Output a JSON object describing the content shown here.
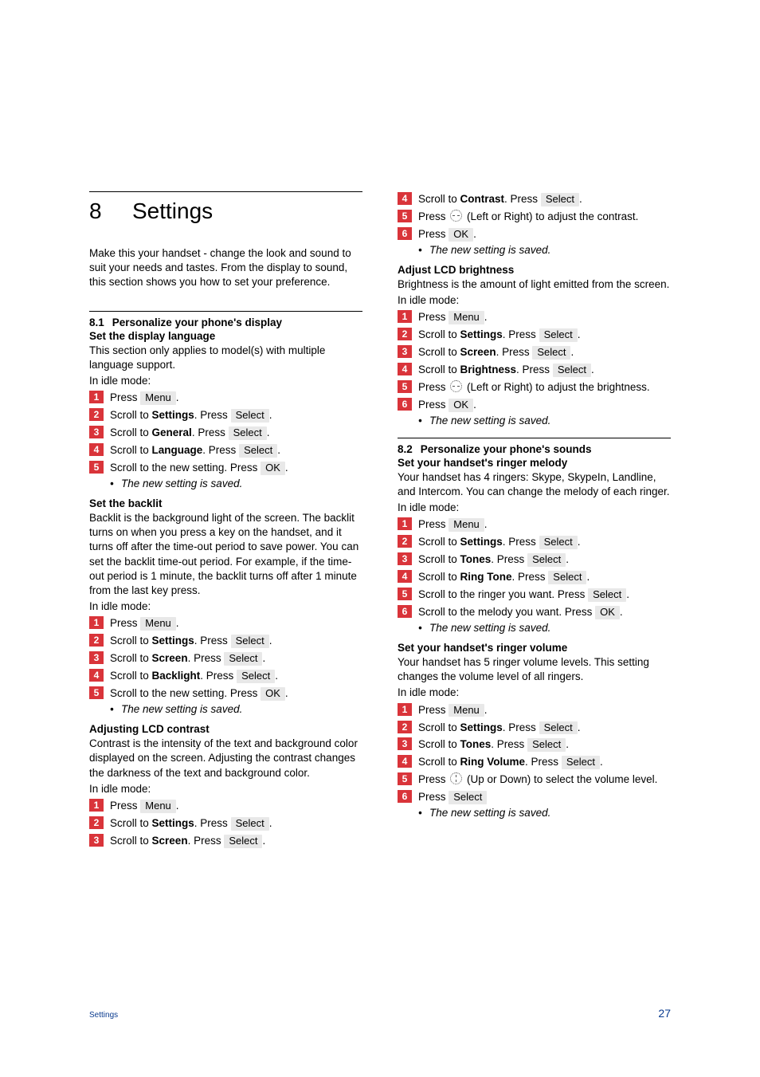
{
  "chapter": {
    "number": "8",
    "title": "Settings"
  },
  "intro": "Make this your handset - change the look and sound to suit your needs and tastes. From the display to sound, this section shows you how to set your preference.",
  "keys": {
    "menu": "Menu",
    "select": "Select",
    "ok": "OK"
  },
  "result_saved": "The new setting is saved.",
  "idle": "In idle mode:",
  "s81": {
    "num": "8.1",
    "title": "Personalize your phone's display",
    "lang": {
      "heading": "Set the display language",
      "desc": "This section only applies to model(s) with multiple language support.",
      "s2a": "Scroll to ",
      "s2b": "Settings",
      "s2c": ". Press ",
      "s3a": "Scroll to ",
      "s3b": "General",
      "s3c": ". Press ",
      "s4a": "Scroll to ",
      "s4b": "Language",
      "s4c": ". Press ",
      "s5a": "Scroll to the new setting. Press "
    },
    "backlit": {
      "heading": "Set the backlit",
      "desc": "Backlit is the background light of the screen. The backlit turns on when you press a key on the handset, and it turns off after the time-out period to save power. You can set the backlit time-out period. For example, if the time-out period is 1 minute, the backlit turns off after 1 minute from the last key press.",
      "s2a": "Scroll to ",
      "s2b": "Settings",
      "s2c": ". Press ",
      "s3a": "Scroll to ",
      "s3b": "Screen",
      "s3c": ". Press ",
      "s4a": "Scroll to ",
      "s4b": "Backlight",
      "s4c": ". Press ",
      "s5a": "Scroll to the new setting. Press "
    },
    "contrast": {
      "heading": "Adjusting LCD contrast",
      "desc": "Contrast is the intensity of the text and background color displayed on the screen. Adjusting the contrast changes the darkness of the text and background color.",
      "s2a": "Scroll to ",
      "s2b": "Settings",
      "s2c": ". Press ",
      "s3a": "Scroll to ",
      "s3b": "Screen",
      "s3c": ". Press ",
      "s4a": "Scroll to ",
      "s4b": "Contrast",
      "s4c": ". Press ",
      "s5a": "Press ",
      "s5b": " (Left or Right) to adjust the contrast.",
      "s6a": "Press "
    },
    "brightness": {
      "heading": "Adjust LCD brightness",
      "desc": "Brightness is the amount of light emitted from the screen.",
      "s2a": "Scroll to ",
      "s2b": "Settings",
      "s2c": ". Press ",
      "s3a": "Scroll to ",
      "s3b": "Screen",
      "s3c": ". Press ",
      "s4a": "Scroll to ",
      "s4b": "Brightness",
      "s4c": ". Press ",
      "s5a": "Press ",
      "s5b": " (Left or Right) to adjust the brightness.",
      "s6a": "Press "
    }
  },
  "s82": {
    "num": "8.2",
    "title": "Personalize your phone's sounds",
    "melody": {
      "heading": "Set your handset's ringer melody",
      "desc": "Your handset has 4 ringers: Skype, SkypeIn, Landline, and Intercom. You can change the melody of each ringer.",
      "s2a": "Scroll to ",
      "s2b": "Settings",
      "s2c": ". Press ",
      "s3a": "Scroll to ",
      "s3b": "Tones",
      "s3c": ". Press ",
      "s4a": "Scroll to ",
      "s4b": "Ring Tone",
      "s4c": ". Press ",
      "s5a": "Scroll to the ringer you want. Press ",
      "s6a": "Scroll to the melody you want. Press "
    },
    "volume": {
      "heading": "Set your handset's ringer volume",
      "desc": "Your handset has 5 ringer volume levels. This setting changes the volume level of all ringers.",
      "s2a": "Scroll to ",
      "s2b": "Settings",
      "s2c": ". Press ",
      "s3a": "Scroll to ",
      "s3b": "Tones",
      "s3c": ". Press ",
      "s4a": "Scroll to ",
      "s4b": "Ring Volume",
      "s4c": ". Press ",
      "s5a": "Press ",
      "s5b": " (Up or Down) to select the volume level.",
      "s6a": "Press "
    }
  },
  "press_word": "Press ",
  "period": ".",
  "footer": {
    "label": "Settings",
    "page": "27"
  },
  "colors": {
    "step_bg": "#d9343a",
    "step_fg": "#ffffff",
    "key_bg": "#e8e8e8",
    "footer_color": "#0a3b8f",
    "text": "#000000",
    "page_bg": "#ffffff"
  },
  "typography": {
    "body_pt": 13.5,
    "chapter_pt": 28,
    "footer_label_pt": 10,
    "footer_page_pt": 14
  }
}
